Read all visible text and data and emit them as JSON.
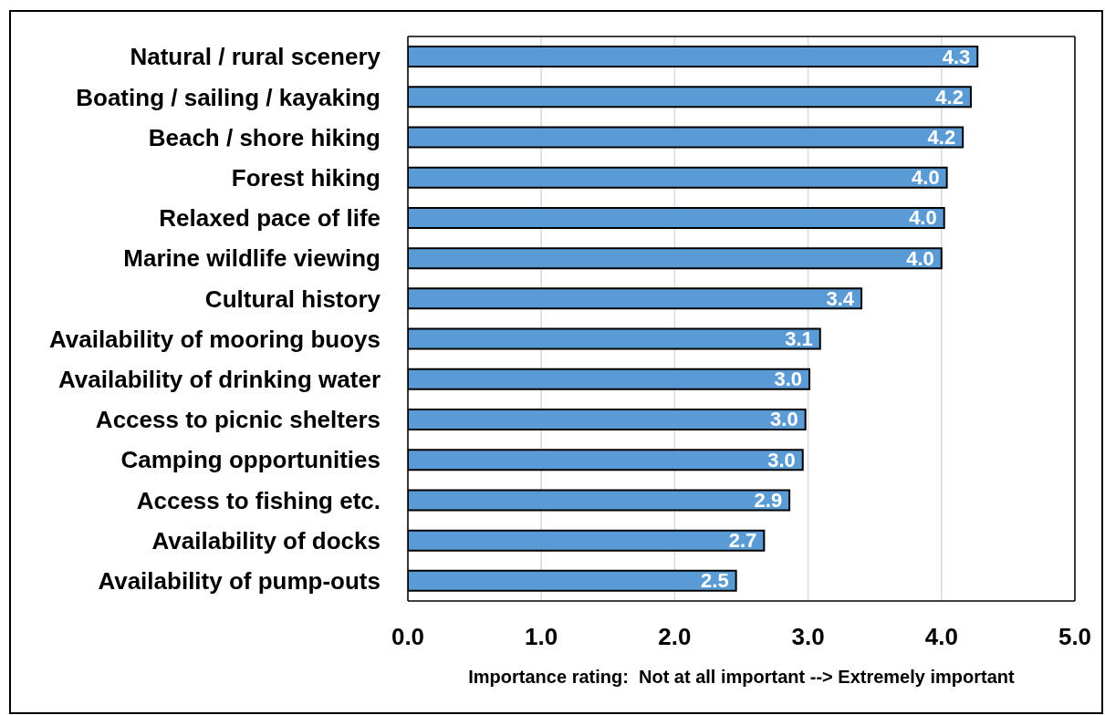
{
  "chart_data": {
    "type": "bar",
    "orientation": "horizontal",
    "categories": [
      "Natural / rural scenery",
      "Boating / sailing / kayaking",
      "Beach / shore hiking",
      "Forest hiking",
      "Relaxed pace of life",
      "Marine wildlife viewing",
      "Cultural history",
      "Availability of mooring buoys",
      "Availability of drinking water",
      "Access to picnic shelters",
      "Camping opportunities",
      "Access to fishing etc.",
      "Availability of docks",
      "Availability of pump-outs"
    ],
    "values": [
      4.27,
      4.22,
      4.16,
      4.04,
      4.02,
      4.0,
      3.4,
      3.09,
      3.01,
      2.98,
      2.96,
      2.86,
      2.67,
      2.46
    ],
    "value_labels": [
      "4.3",
      "4.2",
      "4.2",
      "4.0",
      "4.0",
      "4.0",
      "3.4",
      "3.1",
      "3.0",
      "3.0",
      "3.0",
      "2.9",
      "2.7",
      "2.5"
    ],
    "color": "#5b9bd5",
    "xlabel": "Importance rating:  Not at all important --> Extremely important",
    "xlim": [
      0,
      5
    ],
    "xticks": [
      {
        "value": 0,
        "label": "0.0"
      },
      {
        "value": 1,
        "label": "1.0"
      },
      {
        "value": 2,
        "label": "2.0"
      },
      {
        "value": 3,
        "label": "3.0"
      },
      {
        "value": 4,
        "label": "4.0"
      },
      {
        "value": 5,
        "label": "5.0"
      }
    ],
    "grid": "x"
  }
}
